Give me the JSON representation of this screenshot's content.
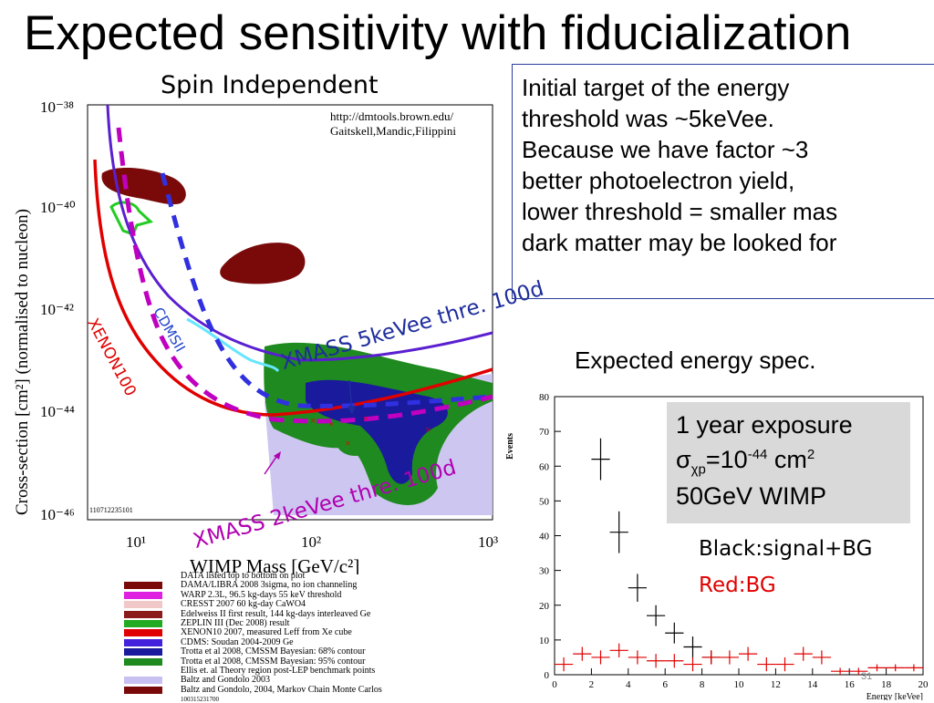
{
  "slide": {
    "title": "Expected sensitivity with fiducialization",
    "si_subtitle": "Spin Independent",
    "info_lines": [
      "Initial target of the energy",
      "threshold was ~5keVee.",
      "Because we have factor ~3",
      "better photoelectron yield,",
      "lower threshold = smaller mas",
      "dark matter may be looked for"
    ],
    "spec_title": "Expected energy spec.",
    "exposure": {
      "line1": "1 year exposure",
      "line2_sym": "σ",
      "line2_sub": "χp",
      "line2_mid": "=10",
      "line2_exp": "-44",
      "line2_unit": " cm",
      "line2_unit_exp": "2",
      "line3": "50GeV WIMP"
    },
    "key_black": "Black:signal+BG",
    "key_red": "Red:BG",
    "slide_number": "31",
    "annotations": {
      "xmass_5kev": "XMASS 5keVee thre. 100d",
      "xmass_2kev": "XMASS 2keVee thre. 100d",
      "xenon": "XENON100",
      "cdms": "CDMSII"
    },
    "si_plot": {
      "credit1": "http://dmtools.brown.edu/",
      "credit2": "Gaitskell,Mandic,Filippini",
      "ylabel": "Cross-section [cm²] (normalised to nucleon)",
      "xlabel": "WIMP Mass [GeV/c²]",
      "plot_id": "110712235101",
      "footer_id": "100315231700",
      "x_ticks": [
        "10¹",
        "10²",
        "10³"
      ],
      "y_ticks": [
        "10⁻³⁸",
        "10⁻⁴⁰",
        "10⁻⁴²",
        "10⁻⁴⁴",
        "10⁻⁴⁶"
      ]
    },
    "si_legend": [
      {
        "label": "DATA listed top to bottom on plot",
        "color": "#ffffff"
      },
      {
        "label": "DAMA/LIBRA 2008 3sigma, no ion channeling",
        "color": "#7a0a0a"
      },
      {
        "label": "WARP 2.3L, 96.5 kg-days 55 keV threshold",
        "color": "#e020e0"
      },
      {
        "label": "CRESST 2007 60 kg-day CaWO4",
        "color": "#f0c8c8"
      },
      {
        "label": "Edelweiss II first result, 144 kg-days interleaved Ge",
        "color": "#8b1a1a"
      },
      {
        "label": "ZEPLIN III (Dec 2008) result",
        "color": "#22aa22"
      },
      {
        "label": "XENON10 2007, measured Leff from Xe cube",
        "color": "#e00000"
      },
      {
        "label": "CDMS: Soudan 2004-2009 Ge",
        "color": "#4422dd"
      },
      {
        "label": "Trotta et al 2008, CMSSM Bayesian: 68% contour",
        "color": "#1a1a9c"
      },
      {
        "label": "Trotta et al 2008, CMSSM Bayesian: 95% contour",
        "color": "#1f8a1f"
      },
      {
        "label": "Ellis et. al Theory region post-LEP benchmark points",
        "color": "#ffffff"
      },
      {
        "label": "Baltz and Gondolo 2003",
        "color": "#c8c0f0"
      },
      {
        "label": "Baltz and Gondolo, 2004, Markov Chain Monte Carlos",
        "color": "#7a0a0a"
      }
    ],
    "colors": {
      "xenon_red": "#e00000",
      "xmass_magenta": "#c000c0",
      "xmass_blue": "#3030e0",
      "cdms_purple": "#5a1fd0",
      "dama_maroon": "#7a0a0a",
      "zeplin_green": "#22cc22",
      "contour_green": "#1f8a1f",
      "contour_blue": "#1a1a9c",
      "baltz_lavender": "#c8c0f0",
      "info_border": "#2a3d9c"
    }
  },
  "chart_data": {
    "type": "scatter",
    "ylabel": "Events",
    "xlabel": "Energy [keVee]",
    "xlim": [
      0,
      20
    ],
    "ylim": [
      0,
      80
    ],
    "x_ticks": [
      0,
      2,
      4,
      6,
      8,
      10,
      12,
      14,
      16,
      18,
      20
    ],
    "y_ticks": [
      0,
      10,
      20,
      30,
      40,
      50,
      60,
      70,
      80
    ],
    "grid": false,
    "series": [
      {
        "name": "signal+BG",
        "color": "#000000",
        "x": [
          2.5,
          3.5,
          4.5,
          5.5,
          6.5,
          7.5,
          8.5
        ],
        "y": [
          62,
          41,
          25,
          17,
          12,
          8,
          5
        ],
        "err": [
          6,
          6,
          4,
          3,
          3,
          3,
          2
        ]
      },
      {
        "name": "BG",
        "color": "#e00000",
        "x": [
          0.5,
          1.5,
          2.5,
          3.5,
          4.5,
          5.5,
          6.5,
          7.5,
          8.5,
          9.5,
          10.5,
          11.5,
          12.5,
          13.5,
          14.5,
          15.5,
          16.5,
          17.5,
          18.5,
          19.5
        ],
        "y": [
          3,
          6,
          5,
          7,
          5,
          4,
          4,
          3,
          5,
          5,
          6,
          3,
          3,
          6,
          5,
          1,
          1,
          2,
          2,
          2
        ],
        "err": [
          2,
          2,
          2,
          2,
          2,
          2,
          2,
          2,
          2,
          2,
          2,
          2,
          2,
          2,
          2,
          1,
          1,
          1,
          1,
          1
        ]
      }
    ]
  }
}
